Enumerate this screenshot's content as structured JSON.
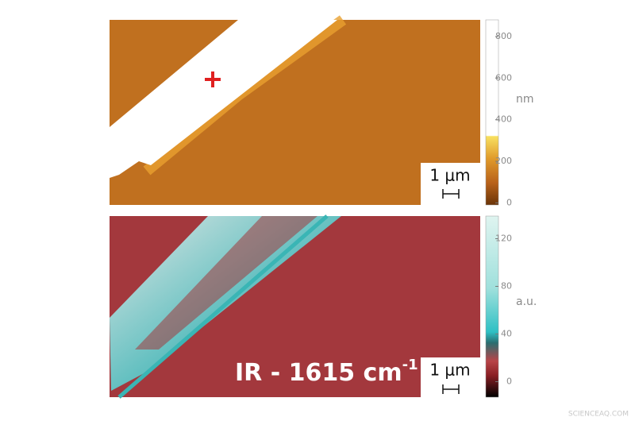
{
  "topography": {
    "scale_bar": "1 μm",
    "colorbar": {
      "unit": "nm",
      "lim": [
        -10,
        880
      ],
      "ticks": [
        0,
        200,
        400,
        600,
        800
      ]
    }
  },
  "ir_map": {
    "label": "IR - 1615 cm",
    "label_superscript": "-1",
    "scale_bar": "1 μm",
    "colorbar": {
      "unit": "a.u.",
      "lim": [
        -13,
        139
      ],
      "ticks": [
        0,
        40,
        80,
        120
      ]
    }
  },
  "watermark": "SCIENCEAQ.COM"
}
